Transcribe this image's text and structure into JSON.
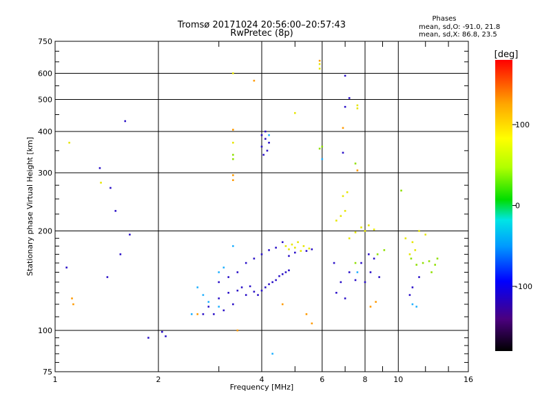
{
  "header": {
    "title": "Tromsø 20171024 20:56:00–20:57:43",
    "subtitle": "RwPretec (8p)",
    "stats_title": "Phases",
    "stats_line1": "mean, sd,O: -91.0, 21.8",
    "stats_line2": "mean, sd,X:  86.8, 23.5"
  },
  "chart_data": {
    "type": "scatter",
    "title": "Tromsø 20171024 20:56:00–20:57:43",
    "subtitle": "RwPretec (8p)",
    "xlabel": "Frequency [MHz]",
    "ylabel": "Stationary phase Virtual Height [km]",
    "x_scale": "log",
    "y_scale": "log",
    "xlim": [
      1,
      16
    ],
    "ylim": [
      75,
      750
    ],
    "x_ticks": [
      1,
      2,
      4,
      6,
      8,
      10,
      16
    ],
    "y_ticks": [
      75,
      100,
      200,
      300,
      400,
      500,
      600,
      750
    ],
    "grid": true,
    "colorbar": {
      "label": "[deg]",
      "range": [
        -180,
        180
      ],
      "ticks": [
        100,
        0,
        -100
      ],
      "colors": [
        "#000000",
        "#4b007f",
        "#0000ff",
        "#0099ff",
        "#00e5e5",
        "#00dd00",
        "#b0ff00",
        "#ffff00",
        "#ffa500",
        "#ff0000"
      ]
    },
    "series": [
      {
        "values": [
          [
            2.7,
            112
          ],
          [
            2.8,
            118
          ],
          [
            2.9,
            112
          ],
          [
            3.0,
            125
          ],
          [
            3.1,
            115
          ],
          [
            3.2,
            130
          ],
          [
            3.3,
            120
          ],
          [
            3.4,
            132
          ],
          [
            3.5,
            135
          ],
          [
            3.6,
            128
          ],
          [
            3.7,
            136
          ],
          [
            3.8,
            131
          ],
          [
            3.9,
            128
          ],
          [
            4.0,
            132
          ],
          [
            4.1,
            135
          ],
          [
            4.2,
            138
          ],
          [
            4.3,
            140
          ],
          [
            4.4,
            142
          ],
          [
            4.5,
            146
          ],
          [
            4.6,
            148
          ],
          [
            4.7,
            150
          ],
          [
            4.8,
            152
          ],
          [
            3.0,
            140
          ],
          [
            3.2,
            145
          ],
          [
            3.4,
            150
          ],
          [
            3.6,
            160
          ],
          [
            3.8,
            165
          ],
          [
            4.0,
            170
          ],
          [
            4.2,
            175
          ],
          [
            4.4,
            178
          ],
          [
            4.6,
            185
          ],
          [
            4.8,
            168
          ],
          [
            5.0,
            172
          ],
          [
            5.4,
            174
          ],
          [
            5.6,
            176
          ],
          [
            4.0,
            360
          ],
          [
            4.05,
            340
          ],
          [
            4.1,
            380
          ],
          [
            4.15,
            350
          ],
          [
            4.2,
            370
          ],
          [
            4.0,
            390
          ],
          [
            4.1,
            400
          ],
          [
            6.6,
            130
          ],
          [
            6.8,
            140
          ],
          [
            7.0,
            125
          ],
          [
            7.2,
            150
          ],
          [
            7.5,
            142
          ],
          [
            8.0,
            140
          ],
          [
            8.3,
            150
          ],
          [
            8.5,
            165
          ],
          [
            8.8,
            145
          ],
          [
            6.5,
            160
          ],
          [
            7.8,
            160
          ],
          [
            8.2,
            170
          ],
          [
            11.0,
            135
          ],
          [
            11.5,
            145
          ],
          [
            10.8,
            128
          ],
          [
            1.35,
            310
          ],
          [
            1.6,
            430
          ],
          [
            1.45,
            270
          ],
          [
            1.5,
            230
          ],
          [
            1.65,
            195
          ],
          [
            1.55,
            170
          ],
          [
            1.42,
            145
          ],
          [
            1.08,
            155
          ],
          [
            7.0,
            590
          ],
          [
            7.2,
            505
          ],
          [
            7.0,
            475
          ],
          [
            6.9,
            345
          ],
          [
            1.87,
            95
          ],
          [
            2.05,
            99
          ],
          [
            2.1,
            96
          ]
        ],
        "color_note": "dark blue / purple (about -100 to -120 deg)"
      },
      {
        "values": [
          [
            4.7,
            180
          ],
          [
            4.8,
            176
          ],
          [
            4.9,
            182
          ],
          [
            5.0,
            178
          ],
          [
            5.1,
            185
          ],
          [
            5.2,
            174
          ],
          [
            5.3,
            180
          ],
          [
            5.5,
            177
          ],
          [
            7.8,
            205
          ],
          [
            8.0,
            200
          ],
          [
            8.2,
            208
          ],
          [
            8.5,
            202
          ],
          [
            7.5,
            198
          ],
          [
            7.2,
            190
          ],
          [
            6.6,
            215
          ],
          [
            6.8,
            222
          ],
          [
            7.0,
            230
          ],
          [
            10.5,
            190
          ],
          [
            11.0,
            185
          ],
          [
            11.5,
            200
          ],
          [
            12.0,
            195
          ],
          [
            10.8,
            170
          ],
          [
            11.2,
            175
          ],
          [
            6.9,
            255
          ],
          [
            7.1,
            262
          ],
          [
            5.0,
            455
          ],
          [
            5.9,
            640
          ],
          [
            5.9,
            620
          ],
          [
            7.6,
            470
          ],
          [
            7.6,
            480
          ],
          [
            3.3,
            600
          ],
          [
            3.3,
            370
          ],
          [
            1.1,
            370
          ],
          [
            1.36,
            280
          ]
        ],
        "color_note": "yellow (about 80 to 110 deg)"
      },
      {
        "values": [
          [
            12.3,
            162
          ],
          [
            12.8,
            158
          ],
          [
            13.0,
            165
          ],
          [
            11.8,
            160
          ],
          [
            12.5,
            150
          ],
          [
            10.9,
            165
          ],
          [
            11.3,
            158
          ],
          [
            8.7,
            170
          ],
          [
            9.1,
            175
          ],
          [
            7.5,
            160
          ],
          [
            10.2,
            265
          ],
          [
            5.9,
            355
          ],
          [
            6.0,
            360
          ],
          [
            3.3,
            330
          ],
          [
            3.3,
            340
          ],
          [
            7.5,
            320
          ]
        ],
        "color_note": "green / yellow-green (about 30 to 70 deg)"
      },
      {
        "values": [
          [
            2.6,
            135
          ],
          [
            2.7,
            128
          ],
          [
            2.8,
            122
          ],
          [
            3.0,
            118
          ],
          [
            2.5,
            112
          ],
          [
            3.0,
            150
          ],
          [
            3.1,
            155
          ],
          [
            4.3,
            85
          ],
          [
            6.0,
            330
          ],
          [
            7.6,
            150
          ],
          [
            11.0,
            120
          ],
          [
            11.3,
            118
          ],
          [
            4.2,
            390
          ],
          [
            3.3,
            180
          ]
        ],
        "color_note": "light blue / cyan (about -60 to -40 deg)"
      },
      {
        "values": [
          [
            3.3,
            295
          ],
          [
            3.3,
            285
          ],
          [
            3.3,
            405
          ],
          [
            3.8,
            570
          ],
          [
            5.9,
            655
          ],
          [
            6.9,
            410
          ],
          [
            7.6,
            305
          ],
          [
            1.12,
            125
          ],
          [
            1.13,
            120
          ],
          [
            2.6,
            112
          ],
          [
            4.6,
            120
          ],
          [
            5.4,
            112
          ],
          [
            5.6,
            105
          ],
          [
            3.4,
            100
          ],
          [
            8.3,
            118
          ],
          [
            8.6,
            122
          ]
        ],
        "color_note": "orange (about 120 to 150 deg)"
      }
    ]
  }
}
